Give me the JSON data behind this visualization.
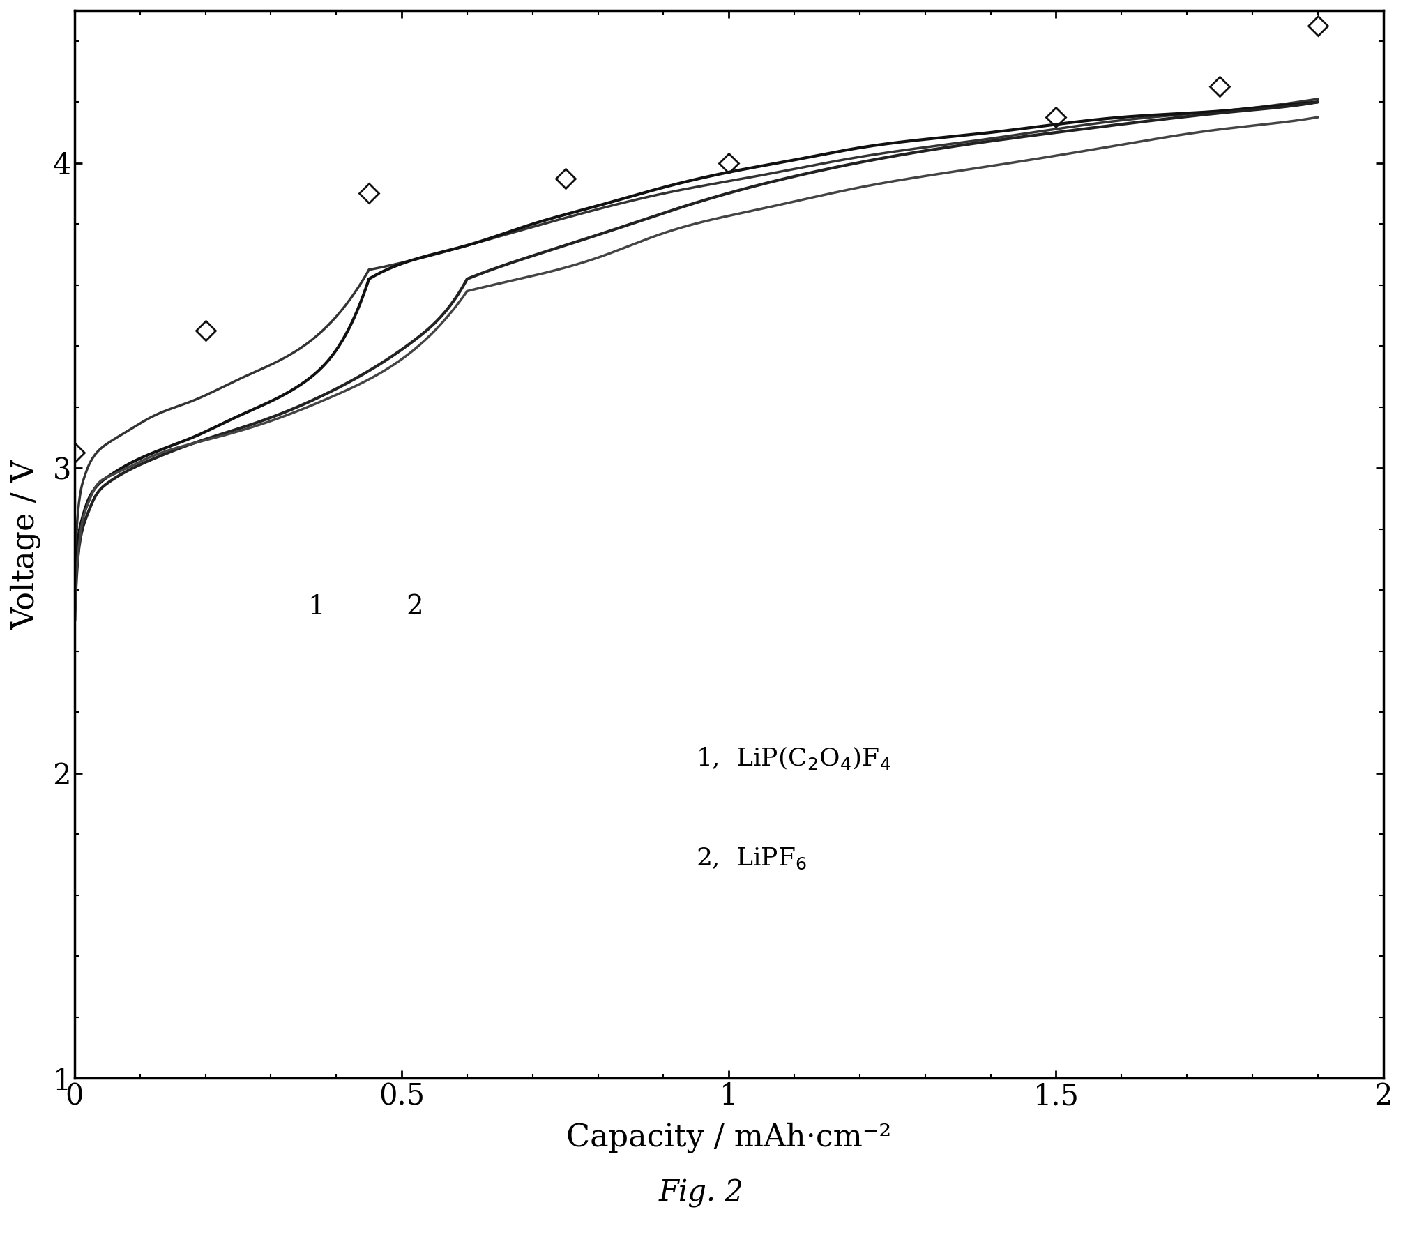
{
  "title": "",
  "xlabel": "Capacity / mAh·cm⁻²",
  "ylabel": "Voltage / V",
  "xlim": [
    0,
    2.0
  ],
  "ylim": [
    1.0,
    4.5
  ],
  "xticks": [
    0,
    0.5,
    1.0,
    1.5,
    2.0
  ],
  "yticks": [
    1,
    2,
    3,
    4
  ],
  "fig_caption": "Fig. 2",
  "legend_line1": "1,  LiP(C",
  "legend_line2": "2,  LiPF",
  "background_color": "#ffffff",
  "line_color": "#1a1a1a",
  "diamond_x": [
    0.0,
    0.2,
    0.45,
    0.75,
    1.0,
    1.5,
    1.75,
    1.9
  ],
  "diamond_y": [
    3.05,
    3.45,
    3.9,
    3.95,
    4.0,
    4.15,
    4.25,
    4.45
  ]
}
